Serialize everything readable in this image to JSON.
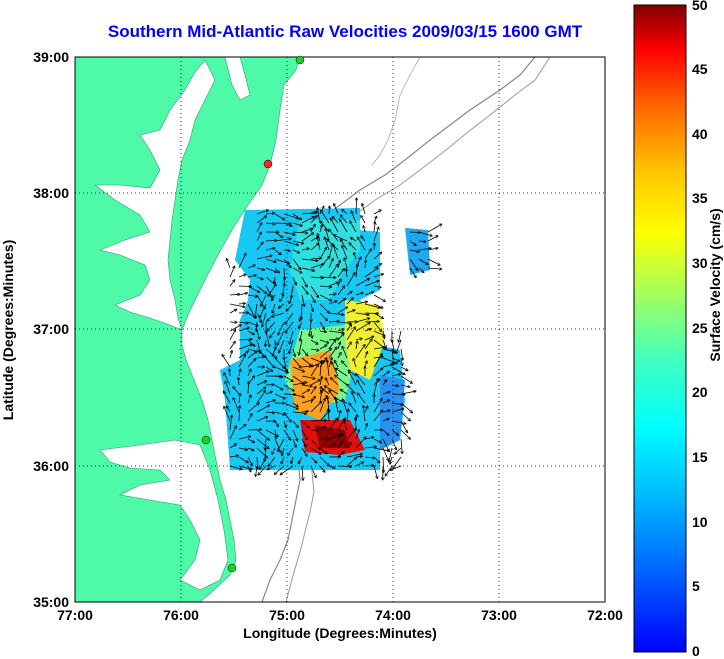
{
  "title": "Southern Mid-Atlantic Raw Velocities 2009/03/15 1600 GMT",
  "axes": {
    "xlabel": "Longitude (Degrees:Minutes)",
    "ylabel": "Latitude (Degrees:Minutes)",
    "x_ticks": [
      "77:00",
      "76:00",
      "75:00",
      "74:00",
      "73:00",
      "72:00"
    ],
    "y_ticks": [
      "39:00",
      "38:00",
      "37:00",
      "36:00",
      "35:00"
    ]
  },
  "colorbar": {
    "label": "Surface Velocity (cm/s)",
    "ticks": [
      "0",
      "5",
      "10",
      "15",
      "20",
      "25",
      "30",
      "35",
      "40",
      "45",
      "50"
    ],
    "min": 0,
    "max": 50
  },
  "colors": {
    "land": "#4efaa8",
    "title": "#0000ff",
    "station": "#20d020",
    "station_red": "#ff2020"
  },
  "chart_data": {
    "type": "heatmap",
    "title": "Southern Mid-Atlantic Raw Velocities 2009/03/15 1600 GMT",
    "xlabel": "Longitude (Degrees:Minutes)",
    "ylabel": "Latitude (Degrees:Minutes)",
    "xlim": [
      -77,
      -72
    ],
    "ylim": [
      35,
      39
    ],
    "colorbar_range_cm_s": [
      0,
      50
    ],
    "grid": true,
    "stations": [
      {
        "lon": -74.95,
        "lat": 38.98,
        "color": "green"
      },
      {
        "lon": -75.13,
        "lat": 38.2,
        "color": "red"
      },
      {
        "lon": -75.75,
        "lat": 36.17,
        "color": "green"
      },
      {
        "lon": -75.5,
        "lat": 35.23,
        "color": "green"
      }
    ]
  }
}
